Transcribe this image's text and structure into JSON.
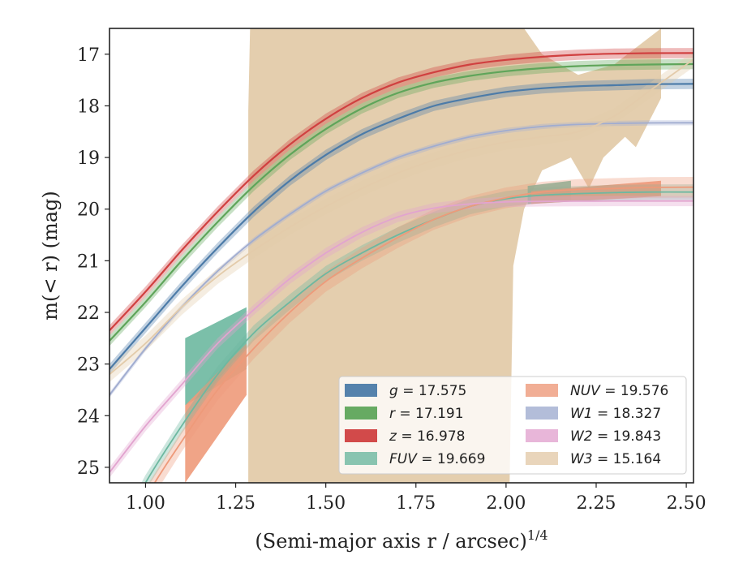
{
  "chart_data": {
    "type": "line",
    "xlabel": "(Semi-major axis r / arcsec)",
    "xlabel_sup": "1/4",
    "ylabel": "m(< r) (mag)",
    "xlim": [
      0.9,
      2.52
    ],
    "ylim": [
      25.3,
      16.5
    ],
    "y_inverted": true,
    "x_ticks": [
      1.0,
      1.25,
      1.5,
      1.75,
      2.0,
      2.25,
      2.5
    ],
    "x_tick_labels": [
      "1.00",
      "1.25",
      "1.50",
      "1.75",
      "2.00",
      "2.25",
      "2.50"
    ],
    "y_ticks": [
      17,
      18,
      19,
      20,
      21,
      22,
      23,
      24,
      25
    ],
    "y_tick_labels": [
      "17",
      "18",
      "19",
      "20",
      "21",
      "22",
      "23",
      "24",
      "25"
    ],
    "grid": false,
    "legend_placement": "lower-right",
    "legend_columns": 2,
    "series": [
      {
        "name": "g",
        "value": "17.575",
        "color": "#4c7ba8",
        "x": [
          0.9,
          1.0,
          1.1,
          1.2,
          1.3,
          1.4,
          1.5,
          1.6,
          1.7,
          1.8,
          1.9,
          2.0,
          2.1,
          2.2,
          2.3,
          2.4,
          2.52
        ],
        "y": [
          23.1,
          22.3,
          21.5,
          20.75,
          20.05,
          19.45,
          18.95,
          18.55,
          18.25,
          18.0,
          17.85,
          17.73,
          17.66,
          17.62,
          17.6,
          17.58,
          17.575
        ],
        "band": 0.1
      },
      {
        "name": "r",
        "value": "17.191",
        "color": "#5fa55a",
        "x": [
          0.9,
          1.0,
          1.1,
          1.2,
          1.3,
          1.4,
          1.5,
          1.6,
          1.7,
          1.8,
          1.9,
          2.0,
          2.1,
          2.2,
          2.3,
          2.4,
          2.52
        ],
        "y": [
          22.55,
          21.8,
          21.0,
          20.25,
          19.55,
          18.95,
          18.45,
          18.05,
          17.75,
          17.55,
          17.42,
          17.33,
          17.27,
          17.23,
          17.21,
          17.2,
          17.191
        ],
        "band": 0.1
      },
      {
        "name": "z",
        "value": "16.978",
        "color": "#d04040",
        "x": [
          0.9,
          1.0,
          1.1,
          1.2,
          1.3,
          1.4,
          1.5,
          1.6,
          1.7,
          1.8,
          1.9,
          2.0,
          2.1,
          2.2,
          2.3,
          2.4,
          2.52
        ],
        "y": [
          22.35,
          21.6,
          20.8,
          20.05,
          19.35,
          18.75,
          18.25,
          17.85,
          17.55,
          17.35,
          17.2,
          17.11,
          17.05,
          17.01,
          16.99,
          16.98,
          16.978
        ],
        "band": 0.1
      },
      {
        "name": "FUV",
        "value": "19.669",
        "color": "#6db8a0",
        "x": [
          0.9,
          1.0,
          1.1,
          1.2,
          1.3,
          1.4,
          1.5,
          1.6,
          1.7,
          1.8,
          1.9,
          2.0,
          2.1,
          2.2,
          2.3,
          2.4,
          2.52
        ],
        "y": [
          26.6,
          25.3,
          24.2,
          23.2,
          22.4,
          21.8,
          21.25,
          20.85,
          20.5,
          20.2,
          19.95,
          19.8,
          19.73,
          19.7,
          19.68,
          19.67,
          19.669
        ],
        "band": 0.15,
        "uncertainty_polygon": {
          "x": [
            1.11,
            1.28,
            1.28,
            1.11
          ],
          "y": [
            22.5,
            21.9,
            23.1,
            23.8
          ]
        },
        "uncertainty_polygon_2": {
          "x": [
            2.06,
            2.18,
            2.18,
            2.06
          ],
          "y": [
            19.55,
            19.45,
            19.85,
            19.9
          ]
        }
      },
      {
        "name": "NUV",
        "value": "19.576",
        "color": "#ee9a7a",
        "x": [
          0.9,
          1.0,
          1.1,
          1.2,
          1.3,
          1.4,
          1.5,
          1.6,
          1.7,
          1.8,
          1.9,
          2.0,
          2.1,
          2.2,
          2.3,
          2.4,
          2.52
        ],
        "y": [
          27.0,
          25.6,
          24.5,
          23.5,
          22.7,
          22.0,
          21.4,
          20.95,
          20.55,
          20.2,
          19.95,
          19.78,
          19.67,
          19.62,
          19.6,
          19.58,
          19.576
        ],
        "band": 0.2,
        "uncertainty_polygon": {
          "x": [
            1.11,
            1.28,
            1.28,
            1.11
          ],
          "y": [
            23.8,
            22.6,
            23.6,
            25.3
          ]
        },
        "uncertainty_polygon_2": {
          "x": [
            2.07,
            2.43,
            2.43,
            2.07
          ],
          "y": [
            19.65,
            19.45,
            19.75,
            19.9
          ]
        }
      },
      {
        "name": "W1",
        "value": "18.327",
        "color": "#a0acd0",
        "x": [
          0.9,
          1.0,
          1.1,
          1.2,
          1.3,
          1.4,
          1.5,
          1.6,
          1.7,
          1.8,
          1.9,
          2.0,
          2.1,
          2.2,
          2.3,
          2.4,
          2.52
        ],
        "y": [
          23.6,
          22.7,
          21.9,
          21.2,
          20.6,
          20.1,
          19.65,
          19.3,
          19.0,
          18.78,
          18.6,
          18.48,
          18.4,
          18.36,
          18.34,
          18.33,
          18.327
        ],
        "band": 0.05
      },
      {
        "name": "W2",
        "value": "19.843",
        "color": "#e2a4cf",
        "x": [
          0.9,
          1.0,
          1.1,
          1.2,
          1.3,
          1.4,
          1.5,
          1.6,
          1.7,
          1.8,
          1.9,
          2.0,
          2.1,
          2.2,
          2.3,
          2.4,
          2.52
        ],
        "y": [
          25.1,
          24.2,
          23.4,
          22.6,
          21.95,
          21.35,
          20.85,
          20.45,
          20.15,
          19.98,
          19.9,
          19.86,
          19.85,
          19.845,
          19.843,
          19.843,
          19.843
        ],
        "band": 0.1
      },
      {
        "name": "W3",
        "value": "15.164",
        "color": "#e3cbaa",
        "x": [
          0.9,
          1.0,
          1.1,
          1.2,
          1.3,
          1.4,
          1.5,
          1.6,
          1.7,
          1.8,
          1.9,
          2.0,
          2.1,
          2.2,
          2.3,
          2.4,
          2.52
        ],
        "y": [
          23.2,
          22.6,
          21.9,
          21.3,
          20.8,
          20.35,
          19.95,
          19.6,
          19.3,
          19.05,
          18.85,
          18.7,
          18.6,
          18.5,
          18.2,
          17.7,
          17.1
        ],
        "band": 0.15,
        "uncertainty_fill": {
          "upper": {
            "x": [
              1.285,
              1.29,
              1.3,
              2.01,
              2.05,
              2.1,
              2.2,
              2.3,
              2.43,
              2.43
            ],
            "y": [
              18.1,
              16.5,
              16.5,
              16.5,
              16.5,
              17.0,
              17.4,
              17.2,
              16.5,
              16.5
            ]
          },
          "lower": {
            "x": [
              1.285,
              1.29,
              2.01,
              2.02,
              2.05,
              2.1,
              2.18,
              2.23,
              2.27,
              2.33,
              2.36,
              2.43
            ],
            "y": [
              25.3,
              25.3,
              25.3,
              21.1,
              20.0,
              19.25,
              19.0,
              19.6,
              19.0,
              18.6,
              18.8,
              17.85
            ]
          }
        }
      }
    ]
  }
}
